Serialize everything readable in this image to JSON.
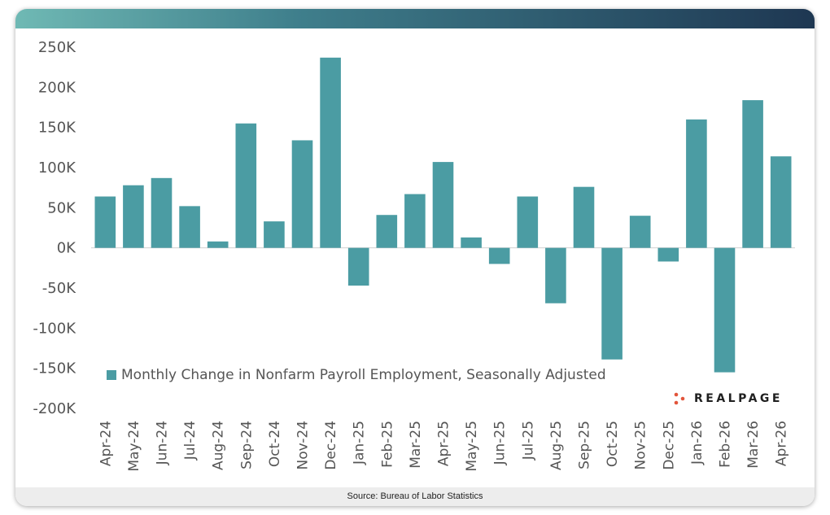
{
  "source": "Source: Bureau of Labor Statistics",
  "logo": {
    "text": "REALPAGE"
  },
  "colors": {
    "bar": "#4b9ca3",
    "logo_dots": "#e2553b",
    "header_dark": "#1e3752",
    "header_light": "#6fb9b4"
  },
  "chart_data": {
    "type": "bar",
    "categories": [
      "Apr-24",
      "May-24",
      "Jun-24",
      "Jul-24",
      "Aug-24",
      "Sep-24",
      "Oct-24",
      "Nov-24",
      "Dec-24",
      "Jan-25",
      "Feb-25",
      "Mar-25",
      "Apr-25",
      "May-25",
      "Jun-25",
      "Jul-25",
      "Aug-25",
      "Sep-25",
      "Oct-25",
      "Nov-25",
      "Dec-25",
      "Jan-26",
      "Feb-26",
      "Mar-26",
      "Apr-26"
    ],
    "series": [
      {
        "name": "Monthly Change in Nonfarm Payroll Employment, Seasonally Adjusted",
        "values": [
          64000,
          78000,
          87000,
          52000,
          8000,
          155000,
          33000,
          134000,
          237000,
          -47000,
          41000,
          67000,
          107000,
          13000,
          -20000,
          64000,
          -69000,
          76000,
          -139000,
          40000,
          -17000,
          160000,
          -155000,
          184000,
          114000
        ]
      }
    ],
    "y_ticks": [
      "250K",
      "200K",
      "150K",
      "100K",
      "50K",
      "0K",
      "-50K",
      "-100K",
      "-150K",
      "-200K"
    ],
    "ylim": [
      -200000,
      250000
    ],
    "grid": false,
    "legend_position": "bottom-left inside plot"
  }
}
